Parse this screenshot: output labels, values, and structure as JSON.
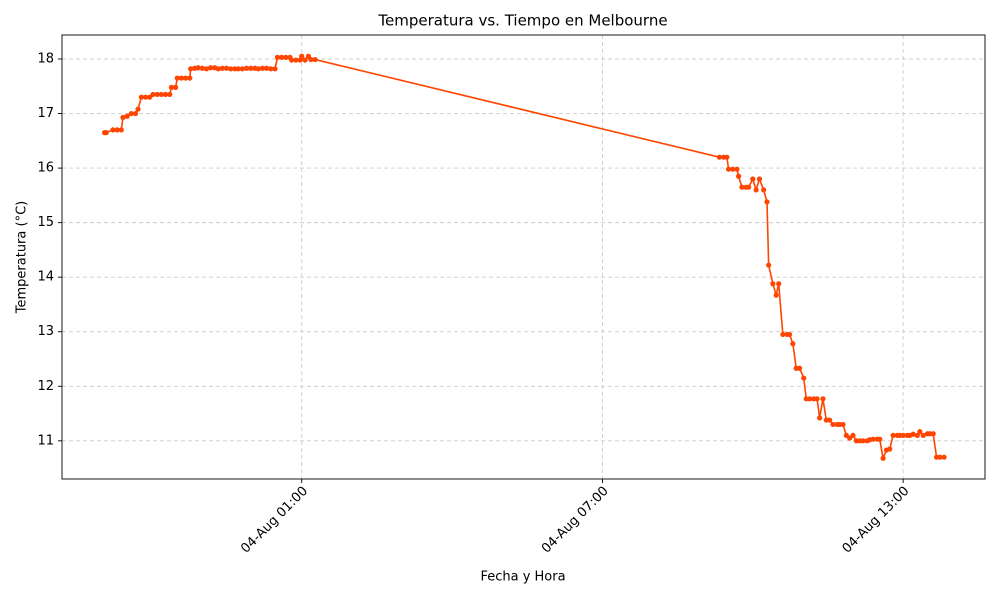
{
  "chart_data": {
    "type": "line",
    "title": "Temperatura vs. Tiempo en Melbourne",
    "x_label": "Fecha y Hora",
    "y_label": "Temperatura (°C)",
    "color": "#ff4500",
    "grid": true,
    "x": [
      "03-Aug 21:04",
      "03-Aug 21:06",
      "03-Aug 21:14",
      "03-Aug 21:19",
      "03-Aug 21:24",
      "03-Aug 21:26",
      "03-Aug 21:31",
      "03-Aug 21:36",
      "03-Aug 21:41",
      "03-Aug 21:44",
      "03-Aug 21:48",
      "03-Aug 21:53",
      "03-Aug 21:58",
      "03-Aug 22:02",
      "03-Aug 22:07",
      "03-Aug 22:12",
      "03-Aug 22:17",
      "03-Aug 22:22",
      "03-Aug 22:24",
      "03-Aug 22:29",
      "03-Aug 22:31",
      "03-Aug 22:36",
      "03-Aug 22:41",
      "03-Aug 22:46",
      "03-Aug 22:47",
      "03-Aug 22:52",
      "03-Aug 22:56",
      "03-Aug 23:01",
      "03-Aug 23:06",
      "03-Aug 23:11",
      "03-Aug 23:16",
      "03-Aug 23:20",
      "03-Aug 23:25",
      "03-Aug 23:30",
      "03-Aug 23:35",
      "03-Aug 23:40",
      "03-Aug 23:44",
      "03-Aug 23:49",
      "03-Aug 23:54",
      "03-Aug 23:59",
      "04-Aug 00:04",
      "04-Aug 00:08",
      "04-Aug 00:13",
      "04-Aug 00:18",
      "04-Aug 00:23",
      "04-Aug 00:28",
      "04-Aug 00:31",
      "04-Aug 00:36",
      "04-Aug 00:41",
      "04-Aug 00:46",
      "04-Aug 00:48",
      "04-Aug 00:53",
      "04-Aug 00:58",
      "04-Aug 01:00",
      "04-Aug 01:04",
      "04-Aug 01:08",
      "04-Aug 01:11",
      "04-Aug 01:16",
      "04-Aug 09:20",
      "04-Aug 09:25",
      "04-Aug 09:29",
      "04-Aug 09:31",
      "04-Aug 09:36",
      "04-Aug 09:41",
      "04-Aug 09:43",
      "04-Aug 09:47",
      "04-Aug 09:52",
      "04-Aug 09:55",
      "04-Aug 10:00",
      "04-Aug 10:04",
      "04-Aug 10:08",
      "04-Aug 10:13",
      "04-Aug 10:17",
      "04-Aug 10:19",
      "04-Aug 10:24",
      "04-Aug 10:28",
      "04-Aug 10:31",
      "04-Aug 10:36",
      "04-Aug 10:41",
      "04-Aug 10:44",
      "04-Aug 10:48",
      "04-Aug 10:52",
      "04-Aug 10:56",
      "04-Aug 11:01",
      "04-Aug 11:04",
      "04-Aug 11:08",
      "04-Aug 11:13",
      "04-Aug 11:17",
      "04-Aug 11:20",
      "04-Aug 11:24",
      "04-Aug 11:28",
      "04-Aug 11:32",
      "04-Aug 11:36",
      "04-Aug 11:41",
      "04-Aug 11:44",
      "04-Aug 11:48",
      "04-Aug 11:52",
      "04-Aug 11:56",
      "04-Aug 12:00",
      "04-Aug 12:04",
      "04-Aug 12:08",
      "04-Aug 12:12",
      "04-Aug 12:17",
      "04-Aug 12:20",
      "04-Aug 12:24",
      "04-Aug 12:29",
      "04-Aug 12:32",
      "04-Aug 12:36",
      "04-Aug 12:40",
      "04-Aug 12:44",
      "04-Aug 12:48",
      "04-Aug 12:53",
      "04-Aug 12:56",
      "04-Aug 13:00",
      "04-Aug 13:05",
      "04-Aug 13:08",
      "04-Aug 13:12",
      "04-Aug 13:17",
      "04-Aug 13:20",
      "04-Aug 13:24",
      "04-Aug 13:29",
      "04-Aug 13:32",
      "04-Aug 13:36",
      "04-Aug 13:40",
      "04-Aug 13:44",
      "04-Aug 13:49"
    ],
    "values": [
      16.65,
      16.65,
      16.7,
      16.7,
      16.7,
      16.93,
      16.95,
      17.0,
      17.0,
      17.08,
      17.3,
      17.3,
      17.3,
      17.35,
      17.35,
      17.35,
      17.35,
      17.35,
      17.48,
      17.48,
      17.65,
      17.65,
      17.65,
      17.65,
      17.82,
      17.83,
      17.84,
      17.83,
      17.82,
      17.84,
      17.84,
      17.82,
      17.83,
      17.83,
      17.82,
      17.82,
      17.82,
      17.82,
      17.83,
      17.83,
      17.83,
      17.82,
      17.83,
      17.83,
      17.82,
      17.82,
      18.03,
      18.03,
      18.03,
      18.03,
      17.98,
      17.98,
      17.98,
      18.05,
      17.98,
      18.05,
      17.99,
      17.99,
      16.2,
      16.2,
      16.2,
      15.98,
      15.98,
      15.98,
      15.85,
      15.65,
      15.65,
      15.65,
      15.8,
      15.6,
      15.8,
      15.6,
      15.38,
      14.22,
      13.88,
      13.67,
      13.88,
      12.95,
      12.95,
      12.95,
      12.78,
      12.33,
      12.33,
      12.15,
      11.77,
      11.77,
      11.77,
      11.77,
      11.42,
      11.77,
      11.38,
      11.38,
      11.3,
      11.3,
      11.3,
      11.3,
      11.1,
      11.05,
      11.1,
      11.0,
      11.0,
      11.0,
      11.0,
      11.02,
      11.03,
      11.03,
      11.03,
      10.68,
      10.83,
      10.85,
      11.1,
      11.1,
      11.1,
      11.1,
      11.1,
      11.1,
      11.12,
      11.1,
      11.17,
      11.1,
      11.13,
      11.13,
      11.13,
      10.7,
      10.7,
      10.7
    ],
    "xlim": [
      "03-Aug 20:13",
      "04-Aug 14:38"
    ],
    "xticks": [
      "04-Aug 01:00",
      "04-Aug 07:00",
      "04-Aug 13:00"
    ],
    "ylim": [
      10.3,
      18.44
    ],
    "yticks": [
      11,
      12,
      13,
      14,
      15,
      16,
      17,
      18
    ]
  }
}
